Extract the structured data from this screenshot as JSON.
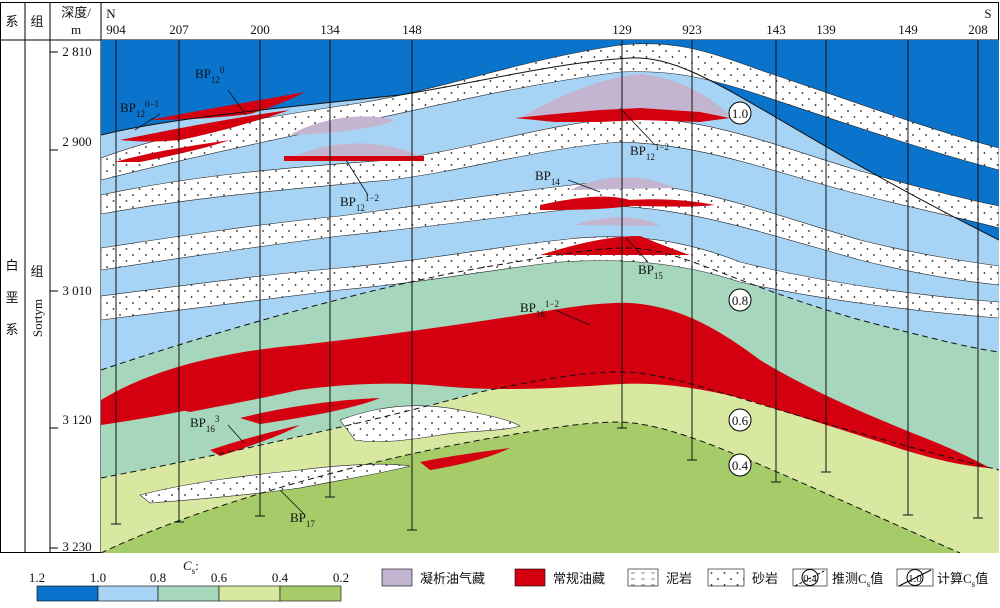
{
  "header": {
    "system_label": "系",
    "formation_label": "组",
    "depth_label_line1": "深度/",
    "depth_label_line2": "m",
    "north_label": "N",
    "south_label": "S",
    "wells": [
      "904",
      "207",
      "200",
      "134",
      "148",
      "129",
      "923",
      "143",
      "139",
      "149",
      "208"
    ]
  },
  "left_column": {
    "system_name_chars": [
      "白",
      "垩",
      "系"
    ],
    "formation_name_char": "组",
    "formation_name_latin": "Sortym"
  },
  "depth_ticks": [
    "2 810",
    "2 900",
    "3 010",
    "3 120",
    "3 230"
  ],
  "reservoirs": [
    {
      "main": "BP",
      "sub": "12",
      "sup": "0"
    },
    {
      "main": "BP",
      "sub": "12",
      "sup": "0−1"
    },
    {
      "main": "BP",
      "sub": "12",
      "sup": "1−2"
    },
    {
      "main": "BP",
      "sub": "12",
      "sup": "1−2"
    },
    {
      "main": "BP",
      "sub": "14",
      "sup": ""
    },
    {
      "main": "BP",
      "sub": "15",
      "sup": ""
    },
    {
      "main": "BP",
      "sub": "16",
      "sup": "1−2"
    },
    {
      "main": "BP",
      "sub": "16",
      "sup": "3"
    },
    {
      "main": "BP",
      "sub": "17",
      "sup": ""
    }
  ],
  "cs_markers": [
    "1.0",
    "0.8",
    "0.6",
    "0.4"
  ],
  "scale_bar": {
    "title_main": "C",
    "title_sub": "s",
    "title_tail": ":",
    "ticks": [
      "1.2",
      "1.0",
      "0.8",
      "0.6",
      "0.4",
      "0.2"
    ],
    "colors": [
      "#0a74cc",
      "#a7d3f5",
      "#a6d7bc",
      "#d8e8a0",
      "#a6cc6a"
    ]
  },
  "legend": {
    "condensate": "凝析油气藏",
    "conventional": "常规油藏",
    "mudstone": "泥岩",
    "sandstone": "砂岩",
    "inferred_value": "0.4",
    "inferred_label": "推测C",
    "inferred_sub": "s",
    "inferred_tail": "值",
    "calc_value": "1.0",
    "calc_label": "计算C",
    "calc_sub": "s",
    "calc_tail": "值"
  },
  "colors": {
    "c_dark_blue": "#0a74cc",
    "c_light_blue": "#a7d3f5",
    "c_green": "#a6d7bc",
    "c_yellow_green": "#d8e8a0",
    "c_olive": "#a6cc6a",
    "c_red": "#d40010",
    "c_condensate": "#c3b4cf"
  }
}
